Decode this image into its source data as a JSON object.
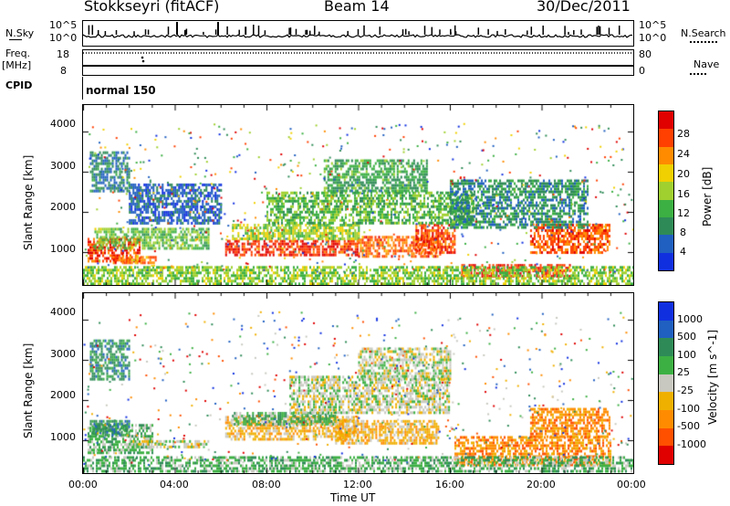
{
  "header": {
    "station": "Stokkseyri (fitACF)",
    "beam": "Beam 14",
    "date": "30/Dec/2011"
  },
  "top_panels": {
    "nsky_label": "N.Sky",
    "nsky_tick_hi": "10^5",
    "nsky_tick_lo": "10^0",
    "nsearch_label": "N.Search",
    "freq_label": "Freq.",
    "freq_unit": "[MHz]",
    "freq_tick_hi": "18",
    "freq_tick_lo": "8",
    "nave_label": "Nave",
    "nave_tick_hi": "80",
    "nave_tick_lo": "0",
    "cpid_label": "CPID",
    "cpid_value": "normal 150"
  },
  "colors": {
    "power": [
      "#1030e0",
      "#2060c0",
      "#2e8b57",
      "#3cb043",
      "#a0d030",
      "#f0d000",
      "#ff8c00",
      "#ff4000",
      "#e00000"
    ],
    "velocity": [
      "#1030e0",
      "#2060c0",
      "#2e8b57",
      "#3cb043",
      "#c8c8c0",
      "#f0b000",
      "#ff8c00",
      "#ff5000",
      "#e00000"
    ]
  },
  "chart_data": [
    {
      "type": "heatmap",
      "title": "Power",
      "ylabel": "Slant Range [km]",
      "xlabel": "",
      "ylim": [
        180,
        4650
      ],
      "xlim": [
        0,
        24
      ],
      "y_ticks": [
        "1000",
        "2000",
        "3000",
        "4000"
      ],
      "colorbar": {
        "label": "Power [dB]",
        "ticks": [
          "4",
          "8",
          "12",
          "16",
          "20",
          "24",
          "28"
        ],
        "range": [
          0,
          32
        ]
      },
      "bands": [
        {
          "t0": 0.2,
          "t1": 2.5,
          "r0": 800,
          "r1": 1350,
          "v": 27
        },
        {
          "t0": 1.3,
          "t1": 3.2,
          "r0": 750,
          "r1": 900,
          "v": 25
        },
        {
          "t0": 0.5,
          "t1": 5.5,
          "r0": 1100,
          "r1": 1600,
          "v": 14
        },
        {
          "t0": 6.2,
          "t1": 12.0,
          "r0": 950,
          "r1": 1300,
          "v": 28
        },
        {
          "t0": 6.5,
          "t1": 12.0,
          "r0": 1300,
          "r1": 1700,
          "v": 16
        },
        {
          "t0": 12.0,
          "t1": 15.5,
          "r0": 900,
          "r1": 1400,
          "v": 25
        },
        {
          "t0": 14.5,
          "t1": 16.2,
          "r0": 1000,
          "r1": 1700,
          "v": 27
        },
        {
          "t0": 16.5,
          "t1": 21.2,
          "r0": 400,
          "r1": 700,
          "v": 29
        },
        {
          "t0": 19.5,
          "t1": 23.0,
          "r0": 1000,
          "r1": 1700,
          "v": 26
        },
        {
          "t0": 8.0,
          "t1": 17.0,
          "r0": 1700,
          "r1": 2500,
          "v": 13
        },
        {
          "t0": 2.0,
          "t1": 6.0,
          "r0": 1700,
          "r1": 2700,
          "v": 5
        },
        {
          "t0": 10.5,
          "t1": 15.0,
          "r0": 2500,
          "r1": 3300,
          "v": 11
        },
        {
          "t0": 0.3,
          "t1": 2.0,
          "r0": 2500,
          "r1": 3500,
          "v": 8
        },
        {
          "t0": 16.0,
          "t1": 22.0,
          "r0": 1600,
          "r1": 2800,
          "v": 9
        },
        {
          "t0": 0.0,
          "t1": 24.0,
          "r0": 200,
          "r1": 650,
          "v": 15
        }
      ]
    },
    {
      "type": "heatmap",
      "title": "Velocity",
      "ylabel": "Slant Range [km]",
      "xlabel": "Time UT",
      "ylim": [
        180,
        4650
      ],
      "xlim": [
        0,
        24
      ],
      "x_ticks": [
        "00:00",
        "04:00",
        "08:00",
        "12:00",
        "16:00",
        "20:00",
        "00:00"
      ],
      "y_ticks": [
        "1000",
        "2000",
        "3000",
        "4000"
      ],
      "colorbar": {
        "label": "Velocity [m s^-1]",
        "ticks": [
          "1000",
          "500",
          "100",
          "25",
          "-25",
          "-100",
          "-500",
          "-1000"
        ]
      },
      "bands": [
        {
          "t0": 0.2,
          "t1": 3.0,
          "r0": 700,
          "r1": 1400,
          "v": 3
        },
        {
          "t0": 0.3,
          "t1": 2.0,
          "r0": 1100,
          "r1": 1500,
          "v": 2
        },
        {
          "t0": 2.0,
          "t1": 5.5,
          "r0": 800,
          "r1": 1000,
          "v": 4
        },
        {
          "t0": 6.2,
          "t1": 12.0,
          "r0": 1000,
          "r1": 1600,
          "v": 5
        },
        {
          "t0": 6.5,
          "t1": 11.0,
          "r0": 1400,
          "r1": 1700,
          "v": 3
        },
        {
          "t0": 9.0,
          "t1": 16.0,
          "r0": 1700,
          "r1": 2600,
          "v": 4
        },
        {
          "t0": 11.0,
          "t1": 15.5,
          "r0": 900,
          "r1": 1500,
          "v": 5
        },
        {
          "t0": 16.2,
          "t1": 23.0,
          "r0": 400,
          "r1": 1100,
          "v": 6
        },
        {
          "t0": 19.5,
          "t1": 23.0,
          "r0": 1100,
          "r1": 1800,
          "v": 6
        },
        {
          "t0": 0.3,
          "t1": 2.0,
          "r0": 2500,
          "r1": 3500,
          "v": 2
        },
        {
          "t0": 12.0,
          "t1": 16.0,
          "r0": 2500,
          "r1": 3300,
          "v": 4
        },
        {
          "t0": 0.0,
          "t1": 24.0,
          "r0": 200,
          "r1": 600,
          "v": 3
        }
      ]
    }
  ]
}
